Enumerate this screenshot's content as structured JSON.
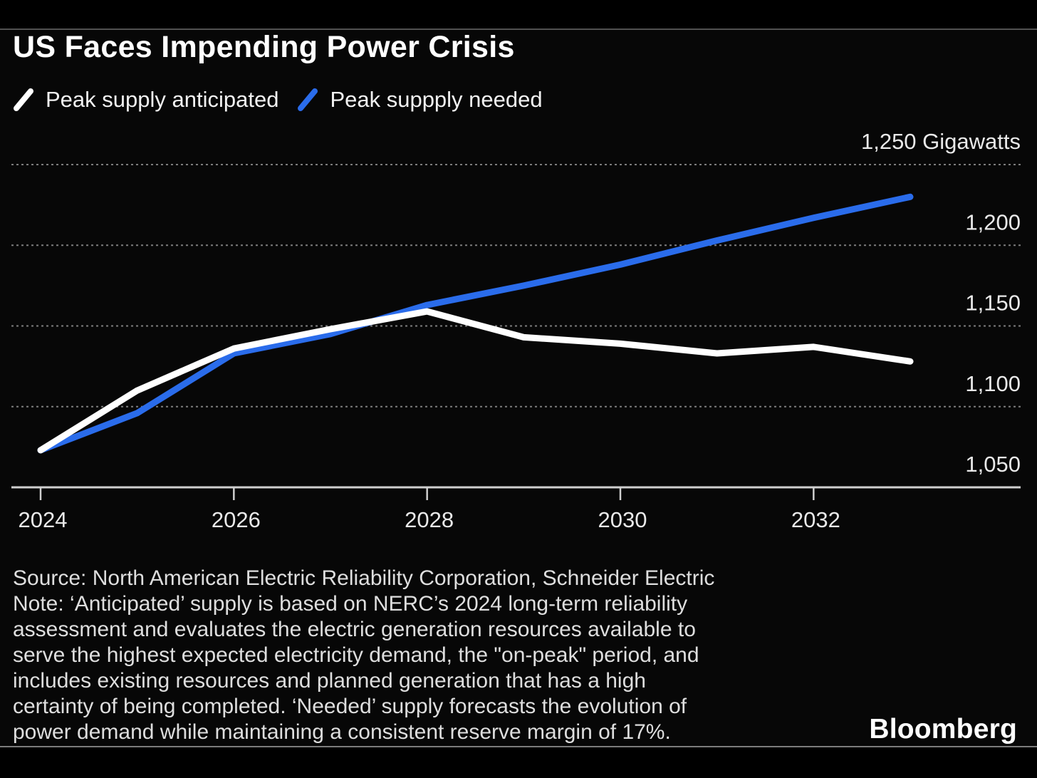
{
  "header": {
    "title": "US Faces Impending Power Crisis"
  },
  "legend": {
    "items": [
      {
        "label": "Peak supply anticipated",
        "color": "#ffffff",
        "icon": "white-slash-icon"
      },
      {
        "label": "Peak suppply needed",
        "color": "#2a6ceb",
        "icon": "blue-slash-icon"
      }
    ]
  },
  "chart_data": {
    "type": "line",
    "title": "US Faces Impending Power Crisis",
    "x": [
      2024,
      2025,
      2026,
      2027,
      2028,
      2029,
      2030,
      2031,
      2032,
      2033
    ],
    "series": [
      {
        "name": "Peak supply anticipated",
        "color": "#ffffff",
        "values": [
          1073,
          1110,
          1136,
          1148,
          1159,
          1143,
          1139,
          1133,
          1137,
          1128
        ]
      },
      {
        "name": "Peak suppply needed",
        "color": "#2a6ceb",
        "values": [
          1073,
          1096,
          1133,
          1145,
          1163,
          1175,
          1188,
          1203,
          1217,
          1230
        ]
      }
    ],
    "ylabel": "Gigawatts",
    "ylim": [
      1050,
      1250
    ],
    "yticks": [
      {
        "value": 1050,
        "label": "1,050"
      },
      {
        "value": 1100,
        "label": "1,100"
      },
      {
        "value": 1150,
        "label": "1,150"
      },
      {
        "value": 1200,
        "label": "1,200"
      },
      {
        "value": 1250,
        "label": "1,250 Gigawatts"
      }
    ],
    "xticks": [
      {
        "value": 2024,
        "label": "2024"
      },
      {
        "value": 2026,
        "label": "2026"
      },
      {
        "value": 2028,
        "label": "2028"
      },
      {
        "value": 2030,
        "label": "2030"
      },
      {
        "value": 2032,
        "label": "2032"
      }
    ],
    "grid": "horizontal-dotted",
    "legend_position": "top-left"
  },
  "footer": {
    "source_note": "Source: North American Electric Reliability Corporation, Schneider Electric\nNote: ‘Anticipated’ supply is based on NERC’s 2024 long-term reliability\nassessment and evaluates the electric generation resources available to\nserve the highest expected electricity demand, the \"on-peak\" period, and\nincludes existing resources and planned generation that has a high\ncertainty of being completed. ‘Needed’ supply forecasts the evolution of\npower demand while maintaining a consistent reserve margin of 17%."
  },
  "branding": {
    "logo": "Bloomberg"
  },
  "colors": {
    "background": "#000000",
    "text": "#ffffff",
    "muted_text": "#dedede",
    "grid": "#9b9b9b",
    "axis": "#cfcfcf",
    "line_anticipated": "#ffffff",
    "line_needed": "#2a6ceb"
  }
}
